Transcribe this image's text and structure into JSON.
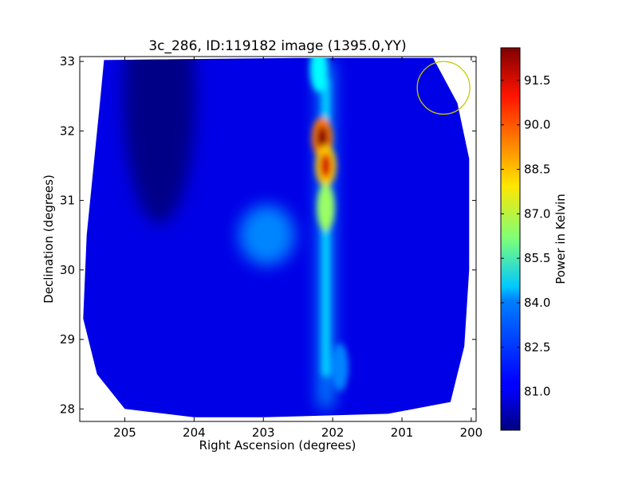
{
  "chart_data": {
    "type": "heatmap",
    "title": "3c_286, ID:119182 image (1395.0,YY)",
    "xlabel": "Right Ascension (degrees)",
    "ylabel": "Declination (degrees)",
    "xlim": [
      205.65,
      199.93
    ],
    "ylim": [
      27.82,
      33.07
    ],
    "x_inverted": true,
    "xticks": [
      205,
      204,
      203,
      202,
      201,
      200
    ],
    "yticks": [
      28,
      29,
      30,
      31,
      32,
      33
    ],
    "colorbar": {
      "label": "Power in Kelvin",
      "colormap": "jet",
      "range": [
        79.7,
        92.6
      ],
      "ticks": [
        "81.0",
        "82.5",
        "84.0",
        "85.5",
        "87.0",
        "88.5",
        "90.0",
        "91.5"
      ]
    },
    "background_level": 81.0,
    "features": [
      {
        "kind": "ridge",
        "ra": 202.1,
        "dec_from": 28.0,
        "dec_to": 33.0,
        "peak": 84.0
      },
      {
        "kind": "peak",
        "ra": 202.15,
        "dec": 31.9,
        "value": 92.5
      },
      {
        "kind": "peak",
        "ra": 202.1,
        "dec": 31.5,
        "value": 91.5
      },
      {
        "kind": "blob",
        "ra": 202.1,
        "dec": 30.9,
        "value": 86.5
      },
      {
        "kind": "blob",
        "ra": 202.2,
        "dec": 32.9,
        "value": 84.5
      },
      {
        "kind": "blob",
        "ra": 202.95,
        "dec": 30.5,
        "value": 83.0
      },
      {
        "kind": "blob",
        "ra": 201.9,
        "dec": 28.6,
        "value": 83.0
      },
      {
        "kind": "trough",
        "ra": 204.5,
        "dec": 32.5,
        "value": 79.8
      }
    ],
    "beam_circle": {
      "ra": 200.4,
      "dec": 32.62,
      "radius_deg": 0.38,
      "color": "#c8c800"
    }
  }
}
